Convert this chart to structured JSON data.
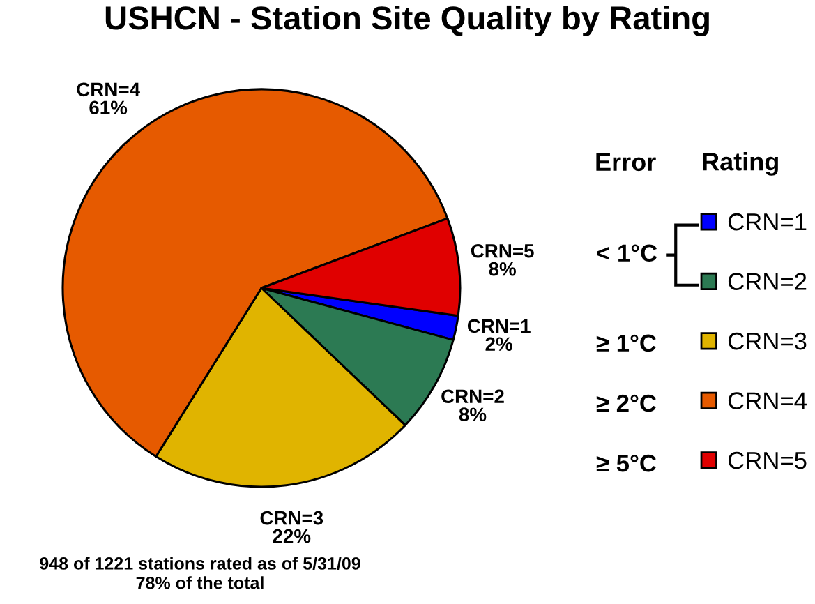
{
  "chart_data": {
    "type": "pie",
    "title": "USHCN - Station Site Quality by Rating",
    "categories": [
      "CRN=1",
      "CRN=2",
      "CRN=3",
      "CRN=4",
      "CRN=5"
    ],
    "values": [
      2,
      8,
      22,
      61,
      8
    ],
    "value_labels": [
      "2%",
      "8%",
      "22%",
      "61%",
      "8%"
    ],
    "colors": [
      "#0000ff",
      "#2c7a53",
      "#e0b400",
      "#e65a00",
      "#e00000"
    ],
    "legend": "right",
    "legend_title": "Rating",
    "annotations": [
      "Error",
      "< 1°C",
      "≥ 1°C",
      "≥ 2°C",
      "≥ 5°C",
      "948 of 1221 stations rated as of 5/31/09\n78% of the total"
    ]
  }
}
